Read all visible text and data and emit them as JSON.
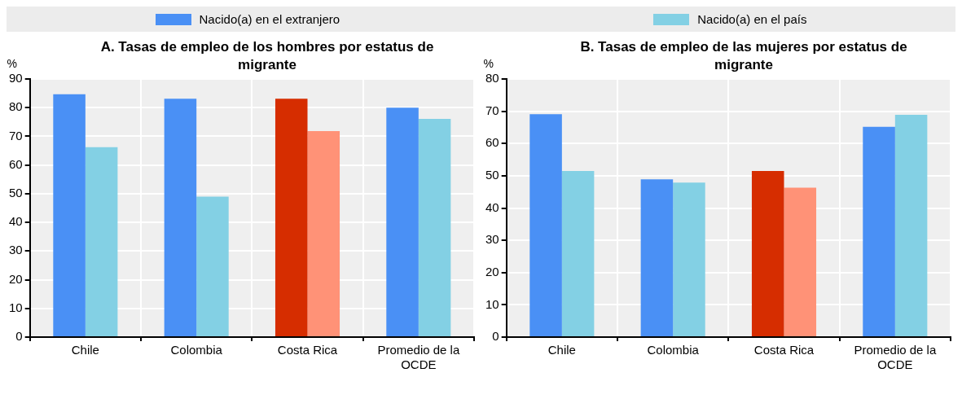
{
  "chart_data": [
    {
      "type": "bar",
      "title": "A. Tasas de empleo de los hombres por estatus de migrante",
      "ylabel": "%",
      "categories": [
        "Chile",
        "Colombia",
        "Costa Rica",
        "Promedio de la OCDE"
      ],
      "series": [
        {
          "name": "Nacido(a) en el extranjero",
          "color": "#4a90f5",
          "colors": [
            "#4a90f5",
            "#4a90f5",
            "#d62d00",
            "#4a90f5"
          ],
          "values": [
            84.7,
            83.1,
            83.1,
            80.0
          ]
        },
        {
          "name": "Nacido(a) en el país",
          "color": "#83d0e4",
          "colors": [
            "#83d0e4",
            "#83d0e4",
            "#ff9277",
            "#83d0e4"
          ],
          "values": [
            66.2,
            49.0,
            71.8,
            76.1
          ]
        }
      ],
      "ylim": [
        0,
        90
      ],
      "yticks": [
        0,
        10,
        20,
        30,
        40,
        50,
        60,
        70,
        80,
        90
      ],
      "grid": true,
      "legend": "top"
    },
    {
      "type": "bar",
      "title": "B. Tasas de empleo de las mujeres por estatus de migrante",
      "ylabel": "%",
      "categories": [
        "Chile",
        "Colombia",
        "Costa Rica",
        "Promedio de la OCDE"
      ],
      "series": [
        {
          "colors": [
            "#4a90f5",
            "#4a90f5",
            "#d62d00",
            "#4a90f5"
          ],
          "values": [
            69.1,
            48.9,
            51.5,
            65.2
          ]
        },
        {
          "colors": [
            "#83d0e4",
            "#83d0e4",
            "#ff9277",
            "#83d0e4"
          ],
          "values": [
            51.5,
            47.9,
            46.3,
            68.9
          ]
        }
      ],
      "ylim": [
        0,
        80
      ],
      "yticks": [
        0,
        10,
        20,
        30,
        40,
        50,
        60,
        70,
        80
      ],
      "grid": true
    }
  ]
}
